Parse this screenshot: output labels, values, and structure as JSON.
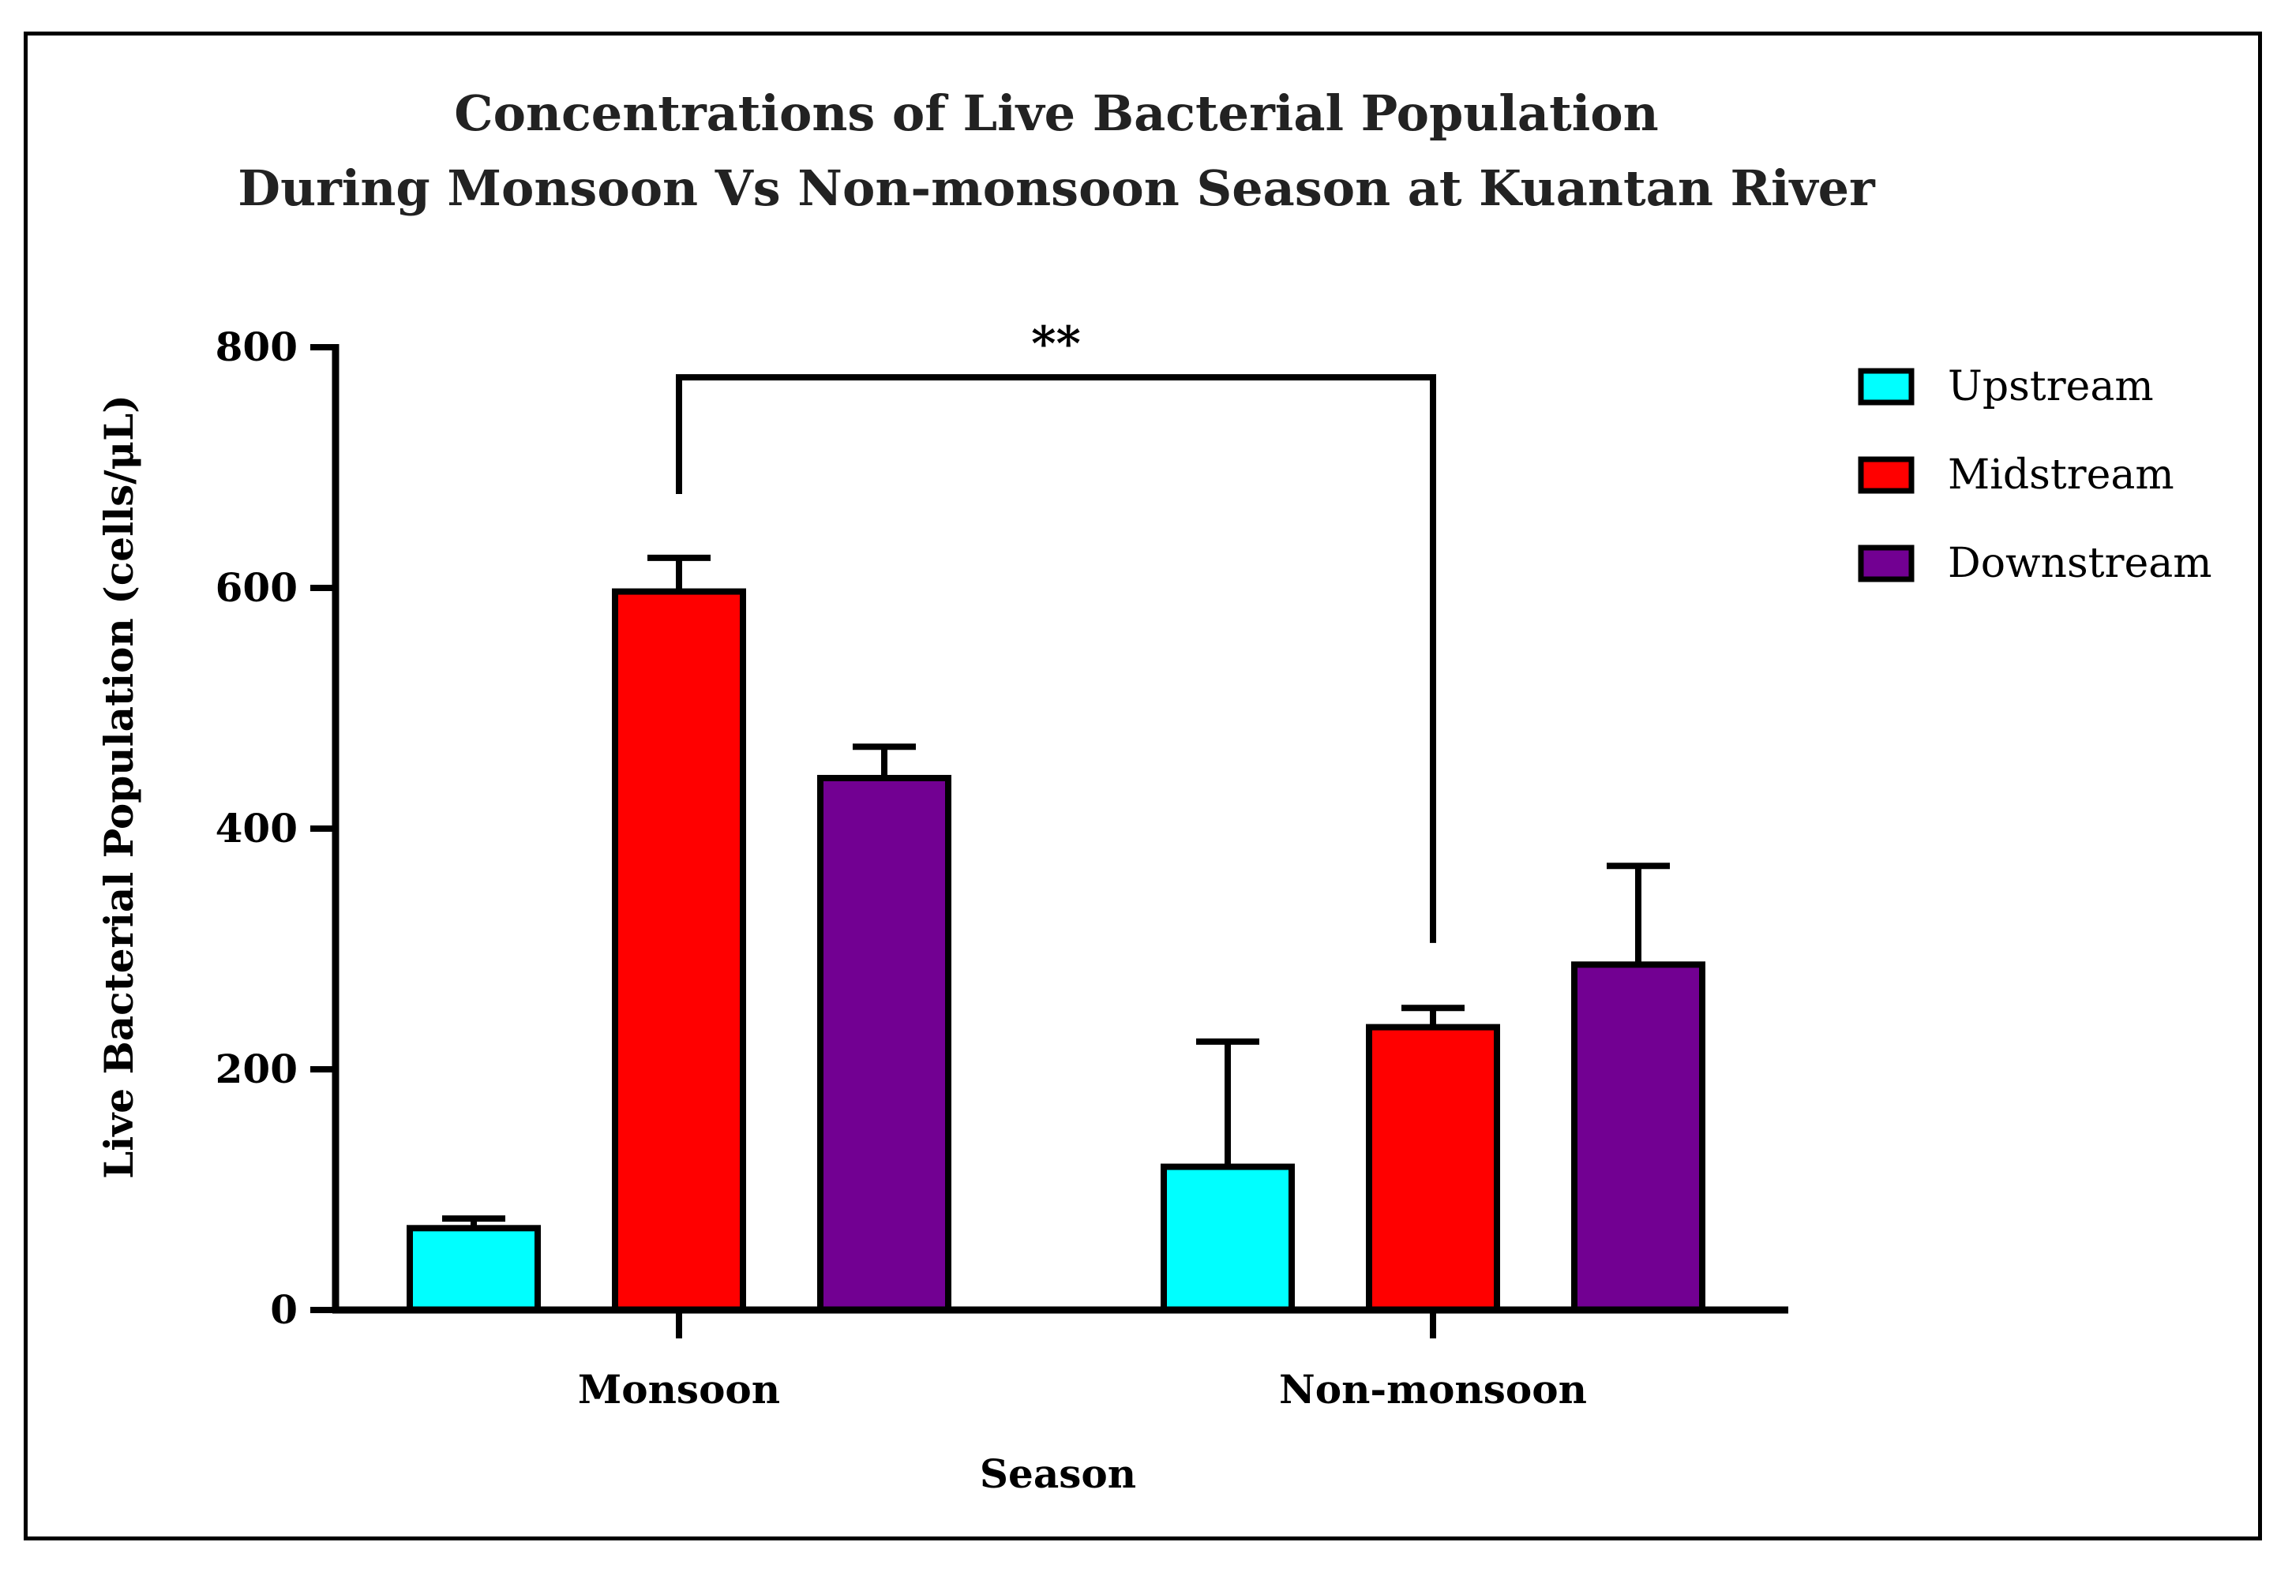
{
  "chart_data": {
    "type": "bar",
    "title": "Concentrations of Live Bacterial Population",
    "subtitle": "During Monsoon Vs Non-monsoon Season at Kuantan River",
    "xlabel": "Season",
    "ylabel": "Live Bacterial Population (cells/μL)",
    "categories": [
      "Monsoon",
      "Non-monsoon"
    ],
    "ylim": [
      0,
      800
    ],
    "yticks": [
      0,
      200,
      400,
      600,
      800
    ],
    "legend_position": "top-right",
    "series": [
      {
        "name": "Upstream",
        "color": "#00FFFF",
        "values": [
          68,
          119
        ],
        "errors": [
          8,
          104
        ]
      },
      {
        "name": "Midstream",
        "color": "#FF0000",
        "values": [
          597,
          235
        ],
        "errors": [
          28,
          16
        ]
      },
      {
        "name": "Downstream",
        "color": "#720092",
        "values": [
          442,
          287
        ],
        "errors": [
          26,
          82
        ]
      }
    ],
    "significance": {
      "label": "**",
      "from_category": "Monsoon",
      "to_category": "Non-monsoon",
      "level": 775
    }
  }
}
